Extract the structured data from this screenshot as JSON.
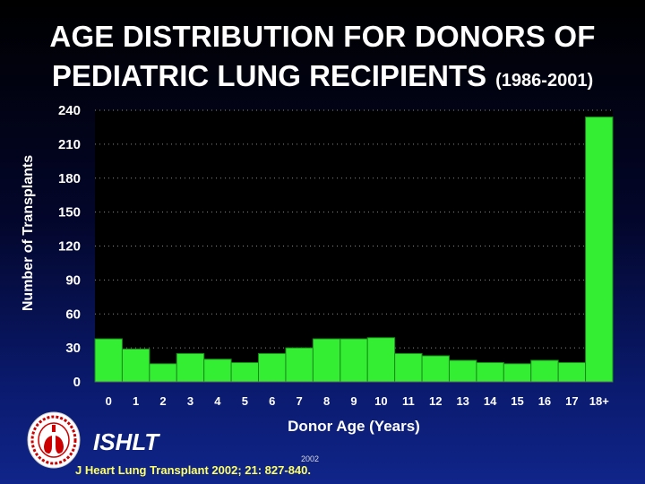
{
  "header": {
    "title_line1": "AGE DISTRIBUTION FOR DONORS OF",
    "title_line2": "PEDIATRIC LUNG RECIPIENTS",
    "title_years": "(1986-2001)"
  },
  "colors": {
    "bar": "#33ee33",
    "bar_stroke": "#1a8a1a",
    "plot_background": "#000000",
    "citation": "#ffff66"
  },
  "chart_data": {
    "type": "bar",
    "title": "AGE DISTRIBUTION FOR DONORS OF PEDIATRIC LUNG RECIPIENTS (1986-2001)",
    "xlabel": "Donor Age (Years)",
    "ylabel": "Number of Transplants",
    "categories": [
      "0",
      "1",
      "2",
      "3",
      "4",
      "5",
      "6",
      "7",
      "8",
      "9",
      "10",
      "11",
      "12",
      "13",
      "14",
      "15",
      "16",
      "17",
      "18+"
    ],
    "values": [
      38,
      29,
      16,
      25,
      20,
      17,
      25,
      30,
      38,
      38,
      39,
      25,
      23,
      19,
      17,
      16,
      19,
      17,
      234
    ],
    "ylim": [
      0,
      240
    ],
    "yticks": [
      0,
      30,
      60,
      90,
      120,
      150,
      180,
      210,
      240
    ],
    "grid": true,
    "legend": "none"
  },
  "footer": {
    "org": "ISHLT",
    "citation": "J Heart Lung Transplant 2002; 21: 827-840.",
    "citation_year": "2002",
    "logo_icon": "ishlt-lungs-logo-icon"
  }
}
